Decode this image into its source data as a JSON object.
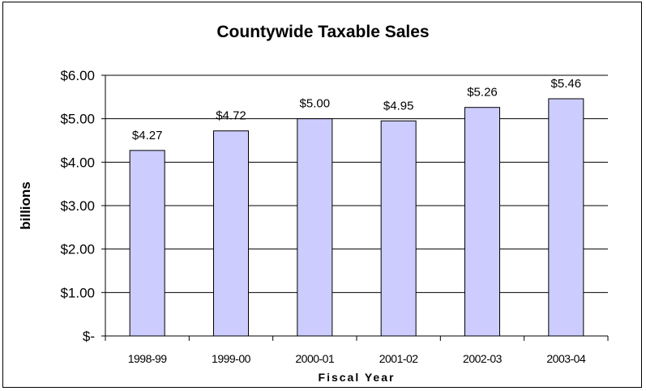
{
  "chart_data": {
    "type": "bar",
    "title": "Countywide Taxable Sales",
    "xlabel": "Fiscal Year",
    "ylabel": "billions",
    "categories": [
      "1998-99",
      "1999-00",
      "2000-01",
      "2001-02",
      "2002-03",
      "2003-04"
    ],
    "values": [
      4.27,
      4.72,
      5.0,
      4.95,
      5.26,
      5.46
    ],
    "value_labels": [
      "$4.27",
      "$4.72",
      "$5.00",
      "$4.95",
      "$5.26",
      "$5.46"
    ],
    "ylim": [
      0,
      6
    ],
    "yticks": [
      0,
      1,
      2,
      3,
      4,
      5,
      6
    ],
    "ytick_labels": [
      "$-",
      "$1.00",
      "$2.00",
      "$3.00",
      "$4.00",
      "$5.00",
      "$6.00"
    ],
    "grid": true,
    "legend": "none",
    "bar_color": "#ccccff",
    "bar_edge_color": "#000000"
  }
}
